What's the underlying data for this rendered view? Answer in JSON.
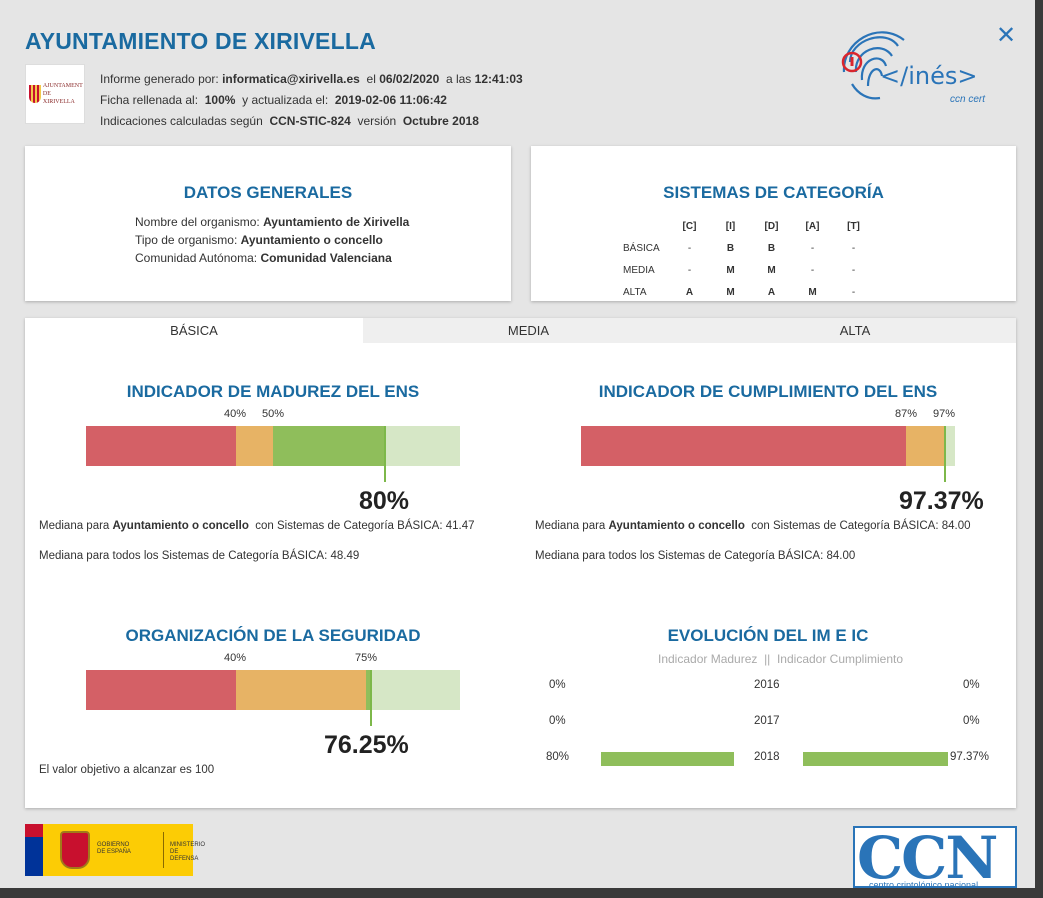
{
  "header": {
    "title": "AYUNTAMIENTO DE XIRIVELLA",
    "close_glyph": "✕",
    "crest_text_1": "AJUNTAMENT",
    "crest_text_2": "DE XIRIVELLA",
    "logo_text": "</inés>",
    "logo_sub": "ccn cert",
    "meta": {
      "l1_a": "Informe generado por:",
      "user": "informatica@xirivella.es",
      "l1_b": "el",
      "date": "06/02/2020",
      "l1_c": "a las",
      "time": "12:41:03",
      "l2_a": "Ficha rellenada al:",
      "fill": "100%",
      "l2_b": "y actualizada el:",
      "updated": "2019-02-06 11:06:42",
      "l3_a": "Indicaciones calculadas según",
      "guide": "CCN-STIC-824",
      "l3_b": "versión",
      "version": "Octubre 2018"
    }
  },
  "datos_generales": {
    "title": "DATOS GENERALES",
    "rows": [
      {
        "label": "Nombre del organismo:",
        "value": "Ayuntamiento de Xirivella"
      },
      {
        "label": "Tipo de organismo:",
        "value": "Ayuntamiento o concello"
      },
      {
        "label": "Comunidad Autónoma:",
        "value": "Comunidad Valenciana"
      }
    ]
  },
  "sistemas": {
    "title": "SISTEMAS DE CATEGORÍA",
    "headers": [
      "[C]",
      "[I]",
      "[D]",
      "[A]",
      "[T]"
    ],
    "rows": [
      {
        "label": "BÁSICA",
        "cells": [
          "-",
          "B",
          "B",
          "-",
          "-"
        ]
      },
      {
        "label": "MEDIA",
        "cells": [
          "-",
          "M",
          "M",
          "-",
          "-"
        ]
      },
      {
        "label": "ALTA",
        "cells": [
          "A",
          "M",
          "A",
          "M",
          "-"
        ]
      }
    ]
  },
  "tabs": [
    "BÁSICA",
    "MEDIA",
    "ALTA"
  ],
  "madurez": {
    "title": "INDICADOR DE MADUREZ DEL ENS",
    "tick1": "40%",
    "tick2": "50%",
    "segments": [
      40,
      10,
      30,
      20
    ],
    "marker_fraction": 0.8,
    "value": "80%",
    "note1_a": "Mediana para",
    "note1_b": "Ayuntamiento o concello",
    "note1_c": "con Sistemas de Categoría BÁSICA: 41.47",
    "note2": "Mediana para todos los Sistemas de Categoría BÁSICA: 48.49"
  },
  "cumplimiento": {
    "title": "INDICADOR DE CUMPLIMIENTO DEL ENS",
    "tick1": "87%",
    "tick2": "97%",
    "segments": [
      87,
      10,
      0.37,
      2.63
    ],
    "marker_fraction": 0.9737,
    "value": "97.37%",
    "note1_a": "Mediana para",
    "note1_b": "Ayuntamiento o concello",
    "note1_c": "con Sistemas de Categoría BÁSICA: 84.00",
    "note2": "Mediana para todos los Sistemas de Categoría BÁSICA: 84.00"
  },
  "organizacion": {
    "title": "ORGANIZACIÓN DE LA SEGURIDAD",
    "tick1": "40%",
    "tick2": "75%",
    "segments": [
      40,
      35,
      1.25,
      23.75
    ],
    "marker_fraction": 0.7625,
    "value": "76.25%",
    "note": "El valor objetivo a alcanzar es 100"
  },
  "evolucion": {
    "title": "EVOLUCIÓN DEL IM E IC",
    "subtitle_a": "Indicador Madurez",
    "subtitle_sep": "||",
    "subtitle_b": "Indicador Cumplimiento",
    "rows": [
      {
        "year": "2016",
        "im": "0%",
        "ic": "0%",
        "im_frac": 0,
        "ic_frac": 0
      },
      {
        "year": "2017",
        "im": "0%",
        "ic": "0%",
        "im_frac": 0,
        "ic_frac": 0
      },
      {
        "year": "2018",
        "im": "80%",
        "ic": "97.37%",
        "im_frac": 0.8,
        "ic_frac": 0.9737
      }
    ]
  },
  "footer": {
    "gov_1": "GOBIERNO",
    "gov_2": "DE ESPAÑA",
    "min_1": "MINISTERIO",
    "min_2": "DE DEFENSA",
    "ccn_letters": "CCN",
    "ccn_caption": "centro criptológico nacional"
  }
}
